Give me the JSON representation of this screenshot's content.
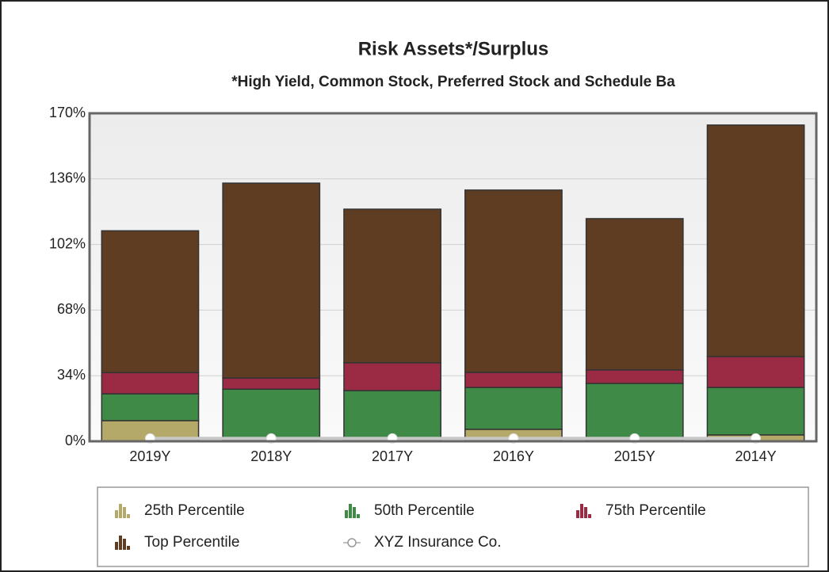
{
  "chart_data": {
    "type": "bar",
    "stacked": true,
    "title": "Risk Assets*/Surplus",
    "subtitle": "*High Yield, Common Stock, Preferred Stock and Schedule Ba",
    "categories": [
      "2019Y",
      "2018Y",
      "2017Y",
      "2016Y",
      "2015Y",
      "2014Y"
    ],
    "series": [
      {
        "name": "25th Percentile",
        "color": "#b5a96a",
        "values": [
          10.7,
          1,
          1.6,
          6.2,
          1.6,
          3.3
        ]
      },
      {
        "name": "50th Percentile",
        "color": "#3e8a46",
        "values": [
          13.9,
          26,
          24.7,
          21.7,
          28.4,
          24.6
        ]
      },
      {
        "name": "75th Percentile",
        "color": "#9b2a45",
        "values": [
          11,
          5.8,
          14.4,
          7.8,
          7,
          16
        ]
      },
      {
        "name": "Top Percentile",
        "color": "#5f3d23",
        "values": [
          73.5,
          101,
          79.6,
          94.5,
          78.4,
          120
        ]
      },
      {
        "name": "XYZ Insurance Co.",
        "color": "#c8c8c8",
        "type": "line",
        "values": [
          1.5,
          1.5,
          1.5,
          1.5,
          1.5,
          1.5
        ]
      }
    ],
    "ylim": [
      0,
      170
    ],
    "yticks": [
      {
        "value": 0,
        "label": "0%"
      },
      {
        "value": 34,
        "label": "34%"
      },
      {
        "value": 68,
        "label": "68%"
      },
      {
        "value": 102,
        "label": "102%"
      },
      {
        "value": 136,
        "label": "136%"
      },
      {
        "value": 170,
        "label": "170%"
      }
    ],
    "grid": true
  }
}
